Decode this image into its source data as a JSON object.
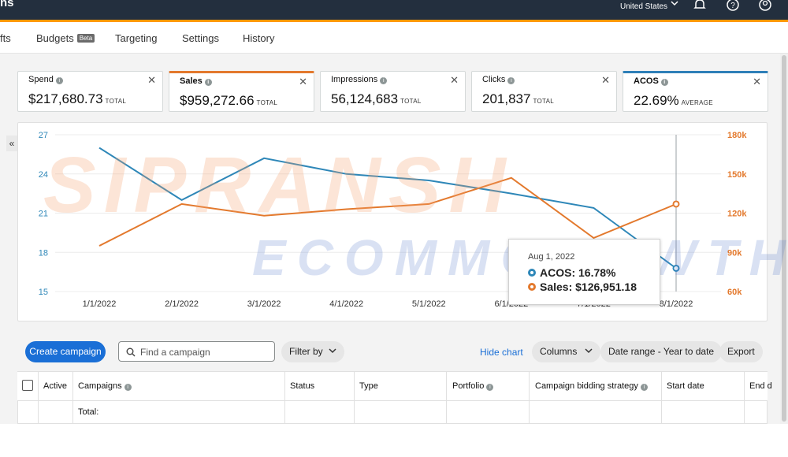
{
  "topbar": {
    "brand": "ns",
    "country": "United States"
  },
  "tabs": [
    {
      "label": "fts"
    },
    {
      "label": "Budgets",
      "badge": "Beta"
    },
    {
      "label": "Targeting"
    },
    {
      "label": "Settings"
    },
    {
      "label": "History"
    }
  ],
  "metrics": [
    {
      "label": "Spend",
      "value": "$217,680.73",
      "unit": "TOTAL"
    },
    {
      "label": "Sales",
      "value": "$959,272.66",
      "unit": "TOTAL"
    },
    {
      "label": "Impressions",
      "value": "56,124,683",
      "unit": "TOTAL"
    },
    {
      "label": "Clicks",
      "value": "201,837",
      "unit": "TOTAL"
    },
    {
      "label": "ACOS",
      "value": "22.69%",
      "unit": "AVERAGE"
    }
  ],
  "colors": {
    "acos": "#2e87b8",
    "sales": "#e3792d",
    "primary": "#1a6fd6",
    "nav": "#232f3e",
    "accent": "#ff9900"
  },
  "chart_data": {
    "type": "line",
    "x": [
      "1/1/2022",
      "2/1/2022",
      "3/1/2022",
      "4/1/2022",
      "5/1/2022",
      "6/1/2022",
      "7/1/2022",
      "8/1/2022"
    ],
    "left_axis": {
      "ticks": [
        "27",
        "24",
        "21",
        "18",
        "15"
      ],
      "ylim": [
        15,
        27
      ]
    },
    "right_axis": {
      "ticks": [
        "180k",
        "150k",
        "120k",
        "90k",
        "60k"
      ],
      "ylim": [
        60000,
        180000
      ]
    },
    "series": [
      {
        "name": "ACOS",
        "axis": "left",
        "values": [
          26.0,
          22.0,
          25.2,
          24.0,
          23.5,
          22.5,
          21.4,
          16.78
        ]
      },
      {
        "name": "Sales",
        "axis": "right",
        "values": [
          95000,
          127000,
          118000,
          123000,
          127000,
          147000,
          101000,
          126951.18
        ]
      }
    ],
    "tooltip": {
      "date": "Aug 1, 2022",
      "acos": "ACOS: 16.78%",
      "sales": "Sales: $126,951.18"
    }
  },
  "toolbar": {
    "create": "Create campaign",
    "search_placeholder": "Find a campaign",
    "filter": "Filter by",
    "hide_chart": "Hide chart",
    "columns": "Columns",
    "date_range": "Date range - Year to date",
    "export": "Export"
  },
  "table": {
    "headers": [
      "Active",
      "Campaigns",
      "Status",
      "Type",
      "Portfolio",
      "Campaign bidding strategy",
      "Start date",
      "End d"
    ],
    "total_label": "Total:"
  },
  "watermark": {
    "line1": "SIPRANSH",
    "line2": "ECOMMGROWTH"
  }
}
